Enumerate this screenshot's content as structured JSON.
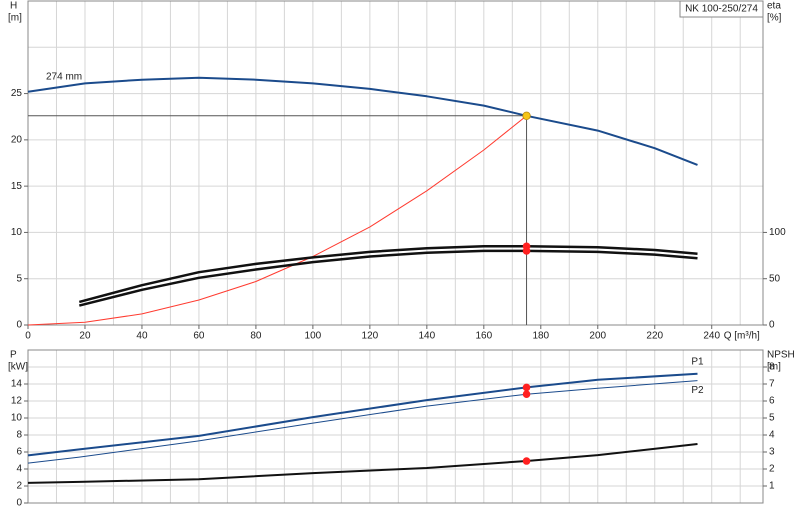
{
  "chart_data": [
    {
      "type": "line",
      "title": "NK 100-250/274",
      "ylabel": "H",
      "yunit": "[m]",
      "y2label": "eta",
      "y2unit": "[%]",
      "xlabel": "Q [m³/h]",
      "xlim": [
        0,
        258
      ],
      "ylim": [
        0,
        35
      ],
      "y2lim": [
        0,
        350
      ],
      "xticks": [
        0,
        20,
        40,
        60,
        80,
        100,
        120,
        140,
        160,
        180,
        200,
        220,
        240
      ],
      "yticks": [
        0,
        5,
        10,
        15,
        20,
        25
      ],
      "y2ticks": [
        0,
        50,
        100
      ],
      "xgrid": [
        0,
        10,
        20,
        30,
        40,
        50,
        60,
        70,
        80,
        90,
        100,
        110,
        120,
        130,
        140,
        150,
        160,
        170,
        180,
        190,
        200,
        210,
        220,
        230,
        240,
        250
      ],
      "ygrid": [
        5,
        10,
        15,
        20,
        25,
        30
      ],
      "duty_q": 175,
      "duty_lines": true,
      "series": [
        {
          "name": "274 mm",
          "color": "#1b4b8c",
          "width": 2,
          "marker_color": "#f5c518",
          "x": [
            0,
            20,
            40,
            60,
            80,
            100,
            120,
            140,
            160,
            175,
            200,
            220,
            235
          ],
          "values": [
            25.2,
            26.1,
            26.5,
            26.7,
            26.5,
            26.1,
            25.5,
            24.7,
            23.7,
            22.6,
            21.0,
            19.1,
            17.3
          ]
        },
        {
          "color": "#ff3b30",
          "width": 1,
          "x": [
            0,
            20,
            40,
            60,
            80,
            100,
            120,
            140,
            160,
            175
          ],
          "values": [
            0,
            0.3,
            1.2,
            2.7,
            4.7,
            7.4,
            10.6,
            14.5,
            18.9,
            22.6
          ]
        },
        {
          "color": "#111111",
          "width": 2.5,
          "axis": "y2",
          "marker_color": "#ff2020",
          "x": [
            18,
            40,
            60,
            80,
            100,
            120,
            140,
            160,
            175,
            200,
            220,
            235
          ],
          "values": [
            25,
            43,
            57,
            66,
            73,
            79,
            83,
            85,
            85,
            84,
            81,
            77
          ]
        },
        {
          "color": "#111111",
          "width": 2.5,
          "axis": "y2",
          "marker_color": "#ff2020",
          "x": [
            18,
            40,
            60,
            80,
            100,
            120,
            140,
            160,
            175,
            200,
            220,
            235
          ],
          "values": [
            21,
            38,
            51,
            60,
            68,
            74,
            78,
            80,
            80,
            79,
            76,
            72
          ]
        }
      ]
    },
    {
      "type": "line",
      "ylabel": "P",
      "yunit": "[kW]",
      "y2label": "NPSH",
      "y2unit": "[m]",
      "xlim": [
        0,
        258
      ],
      "ylim": [
        0,
        18
      ],
      "y2lim": [
        0,
        9
      ],
      "yticks": [
        0,
        2,
        4,
        6,
        8,
        10,
        12,
        14
      ],
      "y2ticks": [
        1,
        2,
        3,
        4,
        5,
        6,
        7,
        8
      ],
      "xgrid": [
        0,
        10,
        20,
        30,
        40,
        50,
        60,
        70,
        80,
        90,
        100,
        110,
        120,
        130,
        140,
        150,
        160,
        170,
        180,
        190,
        200,
        210,
        220,
        230,
        240,
        250
      ],
      "ygrid": [
        2,
        4,
        6,
        8,
        10,
        12,
        14,
        16
      ],
      "duty_q": 175,
      "duty_lines": false,
      "series": [
        {
          "name": "P1",
          "color": "#1b4b8c",
          "width": 2,
          "marker_color": "#ff2020",
          "x": [
            0,
            18,
            60,
            100,
            140,
            175,
            200,
            235
          ],
          "values": [
            5.6,
            6.3,
            7.9,
            10.1,
            12.1,
            13.6,
            14.5,
            15.2
          ]
        },
        {
          "name": "P2",
          "color": "#1b4b8c",
          "width": 1,
          "marker_color": "#ff2020",
          "x": [
            0,
            18,
            60,
            100,
            140,
            175,
            200,
            235
          ],
          "values": [
            4.7,
            5.4,
            7.3,
            9.4,
            11.4,
            12.8,
            13.5,
            14.4
          ]
        },
        {
          "color": "#111111",
          "width": 2,
          "axis": "y2",
          "marker_color": "#ff2020",
          "x": [
            0,
            18,
            60,
            100,
            140,
            175,
            200,
            235
          ],
          "values": [
            1.18,
            1.24,
            1.4,
            1.76,
            2.06,
            2.47,
            2.82,
            3.47
          ]
        }
      ]
    }
  ]
}
